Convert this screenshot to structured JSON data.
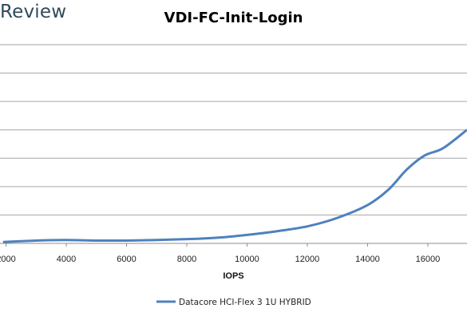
{
  "brand": "Review",
  "chart_data": {
    "type": "line",
    "title": "VDI-FC-Init-Login",
    "xlabel": "IOPS",
    "ylabel": "",
    "xlim": [
      1800,
      17300
    ],
    "ylim": [
      0,
      7
    ],
    "x_ticks": [
      2000,
      4000,
      6000,
      8000,
      10000,
      12000,
      14000,
      16000
    ],
    "y_gridlines": 7,
    "grid": true,
    "legend_position": "bottom",
    "line_color": "#4f81bd",
    "series": [
      {
        "name": "Datacore HCI-Flex 3 1U HYBRID",
        "x": [
          1900,
          3000,
          4000,
          5000,
          6000,
          7000,
          8000,
          9000,
          10000,
          11000,
          12000,
          13000,
          14000,
          14700,
          15300,
          15900,
          16500,
          17300
        ],
        "y": [
          0.05,
          0.1,
          0.12,
          0.1,
          0.1,
          0.12,
          0.15,
          0.2,
          0.3,
          0.43,
          0.6,
          0.9,
          1.35,
          1.9,
          2.6,
          3.1,
          3.35,
          4.0
        ]
      }
    ]
  }
}
